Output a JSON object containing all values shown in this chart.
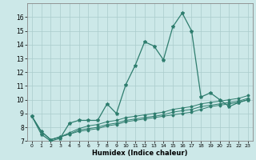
{
  "xlabel": "Humidex (Indice chaleur)",
  "bg_color": "#cce8e8",
  "grid_color": "#aacccc",
  "line_color": "#2e7d6e",
  "xlim": [
    -0.5,
    23.5
  ],
  "ylim": [
    7,
    17
  ],
  "xtick_labels": [
    "0",
    "1",
    "2",
    "3",
    "4",
    "5",
    "6",
    "7",
    "8",
    "9",
    "10",
    "11",
    "12",
    "13",
    "14",
    "15",
    "16",
    "17",
    "18",
    "19",
    "20",
    "21",
    "22",
    "23"
  ],
  "series": [
    [
      8.8,
      7.5,
      7.0,
      7.2,
      8.3,
      8.5,
      8.5,
      8.5,
      9.7,
      9.0,
      11.1,
      12.5,
      14.2,
      13.9,
      12.9,
      15.3,
      16.3,
      15.0,
      10.2,
      10.5,
      10.0,
      9.5,
      9.8,
      10.0
    ],
    [
      8.8,
      7.7,
      7.1,
      7.3,
      7.5,
      7.7,
      7.8,
      7.9,
      8.1,
      8.2,
      8.4,
      8.5,
      8.6,
      8.7,
      8.8,
      8.9,
      9.0,
      9.1,
      9.3,
      9.5,
      9.6,
      9.7,
      9.8,
      10.0
    ],
    [
      8.8,
      7.7,
      7.1,
      7.3,
      7.5,
      7.8,
      7.9,
      8.0,
      8.2,
      8.3,
      8.5,
      8.6,
      8.7,
      8.8,
      8.9,
      9.1,
      9.2,
      9.3,
      9.5,
      9.6,
      9.7,
      9.8,
      9.9,
      10.1
    ],
    [
      8.8,
      7.7,
      7.1,
      7.3,
      7.6,
      7.9,
      8.1,
      8.2,
      8.4,
      8.5,
      8.7,
      8.8,
      8.9,
      9.0,
      9.1,
      9.3,
      9.4,
      9.5,
      9.7,
      9.8,
      9.9,
      10.0,
      10.1,
      10.3
    ]
  ]
}
